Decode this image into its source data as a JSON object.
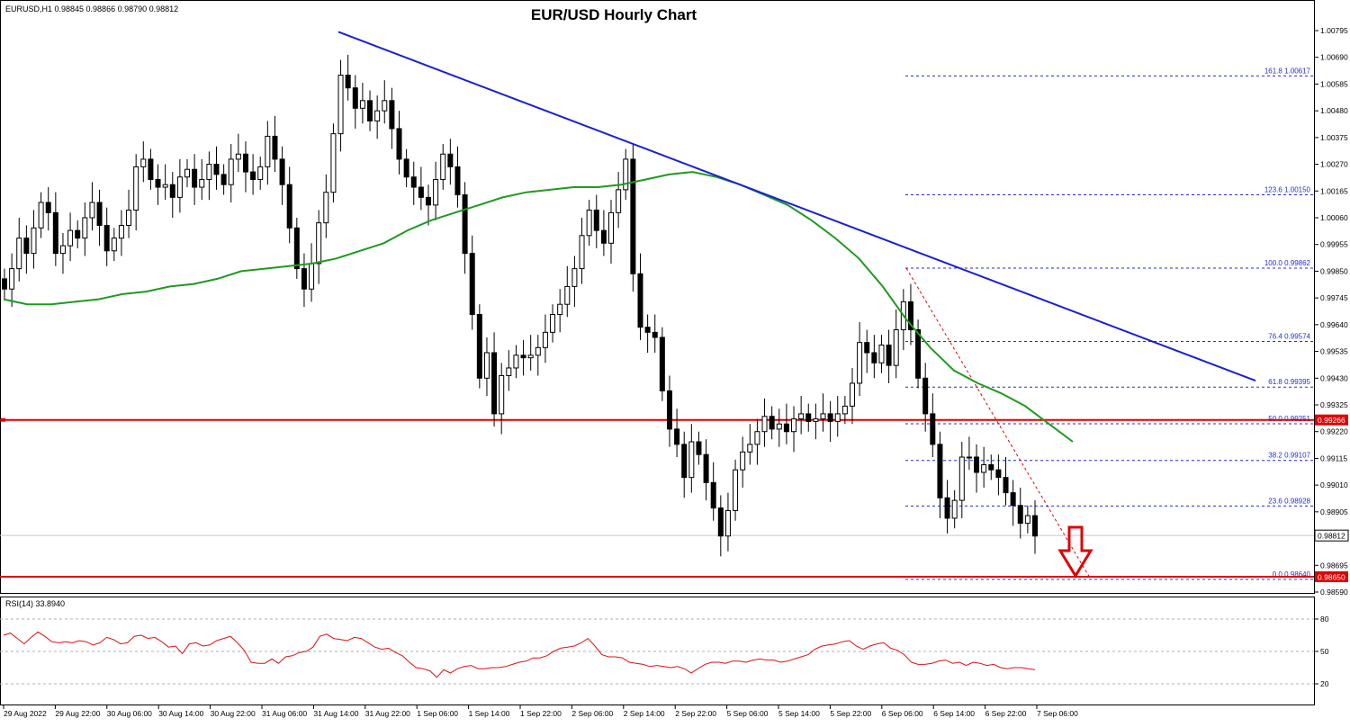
{
  "window": {
    "header": "EURUSD,H1  0.98845 0.98866 0.98790 0.98812",
    "title": "EUR/USD Hourly Chart"
  },
  "rsi": {
    "label": "RSI(14) 33.8940",
    "levels": [
      80,
      50,
      20
    ]
  },
  "colors": {
    "candle": "#000000",
    "ma": "#1f9a1f",
    "trendline": "#1a1fd6",
    "support": "#e00000",
    "fib": "#1f2fd6",
    "rsi": "#e01010",
    "arrow": "#e00000",
    "projection": "#e00000",
    "axis": "#000000"
  },
  "chart_data": {
    "type": "line",
    "symbol": "EURUSD",
    "timeframe": "H1",
    "ohlc_header": {
      "open": 0.98845,
      "high": 0.98866,
      "low": 0.9879,
      "close": 0.98812
    },
    "y_axis_ticks": [
      "1.00795",
      "1.00690",
      "1.00585",
      "1.00480",
      "1.00375",
      "1.00270",
      "1.00165",
      "1.00060",
      "0.99955",
      "0.99850",
      "0.99745",
      "0.99640",
      "0.99535",
      "0.99430",
      "0.99325",
      "0.99220",
      "0.99115",
      "0.99010",
      "0.98905",
      "0.98800",
      "0.98695",
      "0.98590"
    ],
    "x_axis_ticks": [
      "29 Aug 2022",
      "29 Aug 22:00",
      "30 Aug 06:00",
      "30 Aug 14:00",
      "30 Aug 22:00",
      "31 Aug 06:00",
      "31 Aug 14:00",
      "31 Aug 22:00",
      "1 Sep 06:00",
      "1 Sep 14:00",
      "1 Sep 22:00",
      "2 Sep 06:00",
      "2 Sep 14:00",
      "2 Sep 22:00",
      "5 Sep 06:00",
      "5 Sep 14:00",
      "5 Sep 22:00",
      "6 Sep 06:00",
      "6 Sep 14:00",
      "6 Sep 22:00",
      "7 Sep 06:00"
    ],
    "ylim": [
      0.9855,
      1.0087
    ],
    "price_close_series": [
      0.9978,
      0.9986,
      0.9998,
      0.9992,
      1.0002,
      1.0012,
      1.0008,
      0.9992,
      0.9995,
      1.0001,
      0.9998,
      1.0006,
      1.0012,
      1.0003,
      0.9993,
      0.9998,
      1.0003,
      1.0009,
      1.0026,
      1.0029,
      1.0021,
      1.0018,
      1.0019,
      1.0014,
      1.0022,
      1.0025,
      1.0018,
      1.0021,
      1.0027,
      1.0023,
      1.0019,
      1.0029,
      1.0031,
      1.0024,
      1.0021,
      1.0026,
      1.0038,
      1.0029,
      1.0019,
      1.0002,
      0.9986,
      0.9978,
      0.9988,
      1.0004,
      1.0016,
      1.0039,
      1.0062,
      1.0057,
      1.0049,
      1.0052,
      1.0044,
      1.0048,
      1.0052,
      1.0041,
      1.0029,
      1.0022,
      1.0018,
      1.0014,
      1.0011,
      1.0021,
      1.0031,
      1.0026,
      1.0015,
      0.9992,
      0.9968,
      0.9943,
      0.9953,
      0.9929,
      0.9944,
      0.9947,
      0.9952,
      0.9951,
      0.9952,
      0.9955,
      0.9961,
      0.9968,
      0.9972,
      0.9979,
      0.9986,
      0.9999,
      1.0009,
      1.0001,
      0.9996,
      1.0008,
      1.0017,
      1.0029,
      0.9984,
      0.9963,
      0.9961,
      0.9959,
      0.9938,
      0.9923,
      0.9917,
      0.9904,
      0.9918,
      0.9913,
      0.9902,
      0.9892,
      0.9881,
      0.9891,
      0.9907,
      0.9914,
      0.9917,
      0.9922,
      0.9928,
      0.9923,
      0.9925,
      0.9922,
      0.9927,
      0.9929,
      0.9926,
      0.9927,
      0.9929,
      0.9926,
      0.9929,
      0.9932,
      0.9941,
      0.9957,
      0.9953,
      0.9949,
      0.9956,
      0.9948,
      0.9962,
      0.9973,
      0.9962,
      0.9943,
      0.9929,
      0.9917,
      0.9896,
      0.9888,
      0.9895,
      0.9912,
      0.9912,
      0.9906,
      0.9909,
      0.9907,
      0.9904,
      0.9898,
      0.9893,
      0.9886,
      0.9889,
      0.9881
    ],
    "series": [
      {
        "name": "",
        "role": "moving-average",
        "values": [
          0.9974,
          0.9972,
          0.9972,
          0.9973,
          0.9974,
          0.9976,
          0.9977,
          0.9979,
          0.998,
          0.9982,
          0.9985,
          0.9986,
          0.9987,
          0.9988,
          0.999,
          0.9993,
          0.9996,
          1.0001,
          1.0005,
          1.0008,
          1.0011,
          1.0014,
          1.0016,
          1.0017,
          1.0018,
          1.0018,
          1.0019,
          1.0021,
          1.0023,
          1.0024,
          1.0022,
          1.0019,
          1.0015,
          1.0011,
          1.0005,
          0.9998,
          0.999,
          0.9979,
          0.9966,
          0.9955,
          0.9946,
          0.9941,
          0.9937,
          0.9932,
          0.9925,
          0.9918
        ]
      }
    ],
    "trendline": {
      "points": [
        {
          "x": "31 Aug 14:00",
          "y": 1.0079
        },
        {
          "x": "7 Sep 06:00",
          "y": 0.9942
        }
      ]
    },
    "horizontal_levels": [
      {
        "value": 0.99266,
        "label": "0.99266"
      },
      {
        "value": 0.9865,
        "label": "0.98650"
      }
    ],
    "current_price": {
      "value": 0.98812,
      "label": "0.98812"
    },
    "fibonacci_levels": [
      {
        "label": "161.8 1.00617",
        "value": 1.00617
      },
      {
        "label": "123.6 1.00150",
        "value": 1.0015
      },
      {
        "label": "100.0 0.99862",
        "value": 0.99862
      },
      {
        "label": "76.4 0.99574",
        "value": 0.99574
      },
      {
        "label": "61.8 0.99395",
        "value": 0.99395
      },
      {
        "label": "50.0 0.99251",
        "value": 0.99251
      },
      {
        "label": "38.2 0.99107",
        "value": 0.99107
      },
      {
        "label": "23.6 0.98928",
        "value": 0.98928
      },
      {
        "label": "0.0 0.98640",
        "value": 0.9864
      }
    ],
    "rsi_values": [
      65,
      67,
      62,
      57,
      63,
      68,
      64,
      59,
      58,
      59,
      58,
      60,
      59,
      56,
      58,
      63,
      61,
      57,
      58,
      64,
      65,
      62,
      63,
      59,
      54,
      55,
      48,
      57,
      58,
      55,
      56,
      60,
      62,
      64,
      58,
      51,
      40,
      39,
      39,
      43,
      39,
      45,
      46,
      49,
      50,
      54,
      64,
      66,
      62,
      61,
      60,
      63,
      62,
      58,
      54,
      52,
      53,
      49,
      46,
      40,
      35,
      34,
      32,
      26,
      33,
      30,
      34,
      36,
      37,
      34,
      34,
      35,
      35,
      36,
      38,
      40,
      41,
      44,
      44,
      46,
      50,
      53,
      54,
      55,
      58,
      62,
      55,
      47,
      45,
      45,
      44,
      40,
      39,
      38,
      36,
      37,
      36,
      35,
      36,
      34,
      30,
      34,
      38,
      40,
      40,
      39,
      41,
      41,
      40,
      42,
      43,
      42,
      42,
      40,
      41,
      43,
      45,
      47,
      52,
      55,
      56,
      57,
      59,
      60,
      55,
      52,
      55,
      57,
      58,
      53,
      51,
      47,
      40,
      38,
      38,
      39,
      41,
      42,
      39,
      40,
      37,
      40,
      39,
      37,
      38,
      35,
      34,
      35,
      35,
      34,
      33
    ]
  }
}
